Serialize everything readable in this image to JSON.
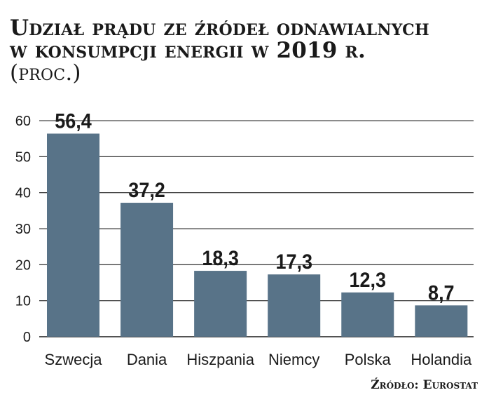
{
  "title": {
    "line1": "Udział prądu ze źródeł odnawialnych",
    "line2": "w konsumpcji energii w 2019 r.",
    "unit": "(proc.)"
  },
  "source": "Źródło: Eurostat",
  "colors": {
    "bar": "#587388",
    "grid": "#1a1a1a",
    "text": "#1a1a1a"
  },
  "chart_data": {
    "type": "bar",
    "title": "Udział prądu ze źródeł odnawialnych w konsumpcji energii w 2019 r. (proc.)",
    "categories": [
      "Szwecja",
      "Dania",
      "Hiszpania",
      "Niemcy",
      "Polska",
      "Holandia"
    ],
    "values": [
      56.4,
      37.2,
      18.3,
      17.3,
      12.3,
      8.7
    ],
    "value_labels": [
      "56,4",
      "37,2",
      "18,3",
      "17,3",
      "12,3",
      "8,7"
    ],
    "yticks": [
      0,
      10,
      20,
      30,
      40,
      50,
      60
    ],
    "ylim": [
      0,
      60
    ],
    "grid": true,
    "xlabel": "",
    "ylabel": ""
  }
}
